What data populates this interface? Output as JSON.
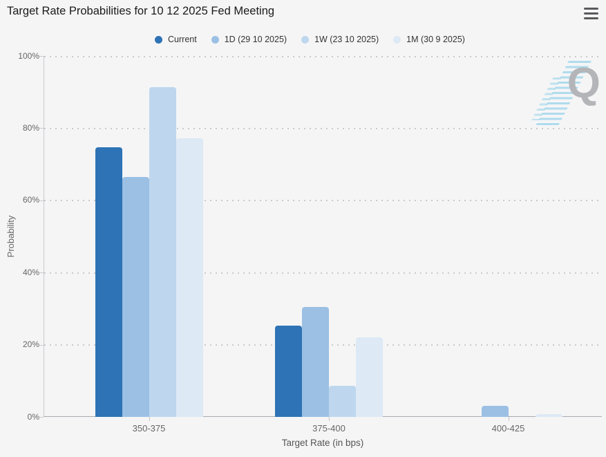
{
  "title": "Target Rate Probabilities for 10 12 2025 Fed Meeting",
  "header": {
    "menu_icon": "hamburger-icon"
  },
  "watermark": {
    "text": "Q"
  },
  "chart_data": {
    "type": "bar",
    "title": "Target Rate Probabilities for 10 12 2025 Fed Meeting",
    "xlabel": "Target Rate (in bps)",
    "ylabel": "Probability",
    "categories": [
      "350-375",
      "375-400",
      "400-425"
    ],
    "y_ticks": [
      "100%",
      "80%",
      "60%",
      "40%",
      "20%",
      "0%"
    ],
    "ylim": [
      0,
      100
    ],
    "grid": "horizontal-dotted",
    "legend_position": "top-center",
    "series": [
      {
        "key": "current",
        "name": "Current",
        "color": "#2E73B5",
        "values": [
          74.7,
          25.3,
          0
        ]
      },
      {
        "key": "1d",
        "name": "1D (29 10 2025)",
        "color": "#9BC0E4",
        "values": [
          66.4,
          30.5,
          3.1
        ]
      },
      {
        "key": "1w",
        "name": "1W (23 10 2025)",
        "color": "#BED7EE",
        "values": [
          91.3,
          8.7,
          0
        ]
      },
      {
        "key": "1m",
        "name": "1M (30 9 2025)",
        "color": "#DDE9F5",
        "values": [
          77.3,
          22.0,
          0.7
        ]
      }
    ]
  }
}
